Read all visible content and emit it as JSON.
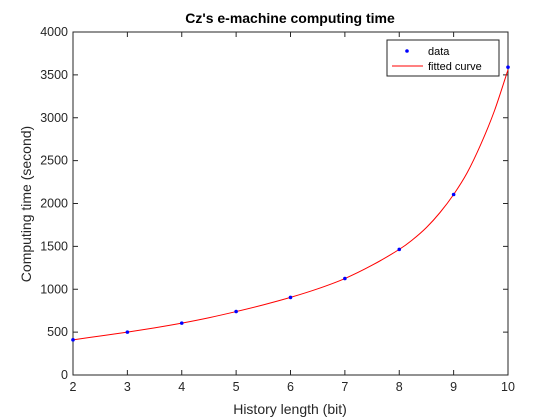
{
  "chart_data": {
    "type": "scatter",
    "title": "Cz's e-machine computing time",
    "xlabel": "History length (bit)",
    "ylabel": "Computing time (second)",
    "xlim": [
      2,
      10
    ],
    "ylim": [
      0,
      4000
    ],
    "xticks": [
      2,
      3,
      4,
      5,
      6,
      7,
      8,
      9,
      10
    ],
    "yticks": [
      0,
      500,
      1000,
      1500,
      2000,
      2500,
      3000,
      3500,
      4000
    ],
    "grid": false,
    "legend_position": "top-right",
    "series": [
      {
        "name": "data",
        "kind": "markers",
        "color": "#0000ff",
        "x": [
          2,
          3,
          4,
          5,
          6,
          7,
          8,
          9,
          10
        ],
        "y": [
          410,
          500,
          605,
          740,
          905,
          1125,
          1465,
          2105,
          3590
        ]
      },
      {
        "name": "fitted curve",
        "kind": "line",
        "color": "#ff0000",
        "x": [
          2,
          2.5,
          3,
          3.5,
          4,
          4.5,
          5,
          5.5,
          6,
          6.5,
          7,
          7.5,
          8,
          8.25,
          8.5,
          8.75,
          9,
          9.25,
          9.5,
          9.75,
          10
        ],
        "y": [
          410,
          455,
          500,
          550,
          605,
          668,
          740,
          818,
          905,
          1005,
          1125,
          1280,
          1465,
          1580,
          1720,
          1895,
          2105,
          2360,
          2690,
          3080,
          3560
        ]
      }
    ]
  }
}
